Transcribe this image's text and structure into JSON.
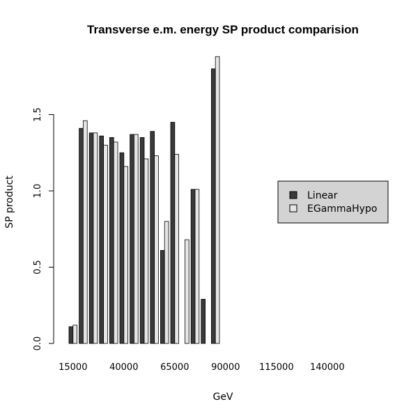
{
  "colors": {
    "background": "#ffffff",
    "linear": "#3a3a3a",
    "egamma": "#e6e6e6",
    "legend_bg": "#d3d3d3",
    "axis": "#000000"
  },
  "chart_data": {
    "type": "bar",
    "title": "Transverse e.m. energy SP product comparision",
    "xlabel": "GeV",
    "ylabel": "SP product",
    "x_tick_labels": [
      "15000",
      "40000",
      "65000",
      "90000",
      "115000",
      "140000"
    ],
    "y_tick_labels": [
      "0.0",
      "0.5",
      "1.0",
      "1.5"
    ],
    "y_ticks": [
      0.0,
      0.5,
      1.0,
      1.5
    ],
    "ylim": [
      0,
      1.88
    ],
    "grid": false,
    "legend_position": "right",
    "categories": [
      "15000",
      "20000",
      "25000",
      "30000",
      "35000",
      "40000",
      "45000",
      "50000",
      "55000",
      "60000",
      "65000",
      "70000",
      "75000",
      "80000",
      "85000",
      "90000",
      "95000",
      "100000",
      "105000",
      "110000",
      "115000",
      "120000",
      "125000",
      "130000",
      "135000",
      "140000",
      "145000",
      "150000",
      "155000"
    ],
    "series": [
      {
        "name": "Linear",
        "values": [
          0.11,
          1.41,
          1.38,
          1.36,
          1.35,
          1.25,
          1.37,
          1.35,
          1.39,
          0.61,
          1.45,
          0.0,
          1.01,
          0.29,
          1.8,
          0,
          0,
          0,
          0,
          0,
          0,
          0,
          0,
          0,
          0,
          0,
          0,
          0,
          0
        ]
      },
      {
        "name": "EGammaHypo",
        "values": [
          0.12,
          1.46,
          1.38,
          1.3,
          1.32,
          1.16,
          1.37,
          1.21,
          1.23,
          0.8,
          1.24,
          0.68,
          1.01,
          0.0,
          1.88,
          0,
          0,
          0,
          0,
          0,
          0,
          0,
          0,
          0,
          0,
          0,
          0,
          0,
          0
        ]
      }
    ]
  }
}
